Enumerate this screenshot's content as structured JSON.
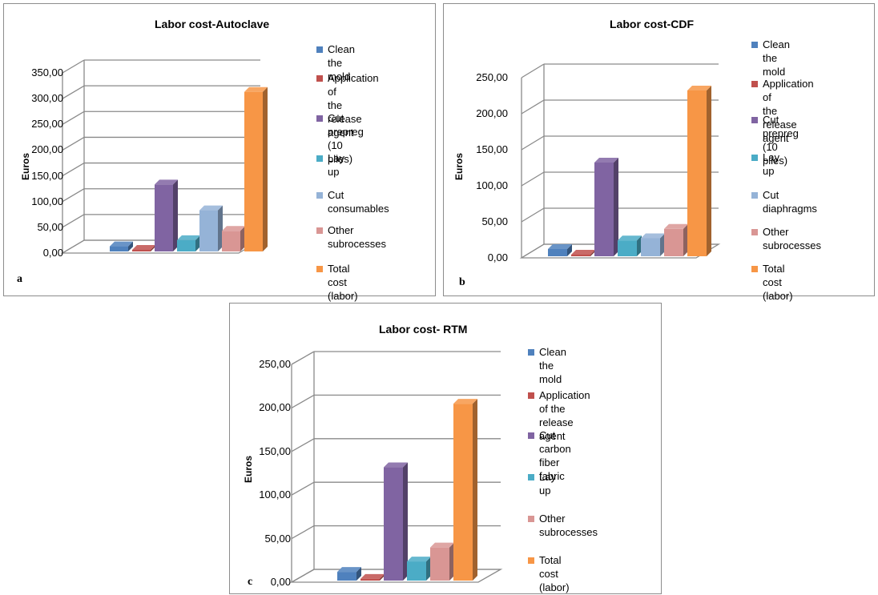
{
  "chart_data": [
    {
      "id": "a",
      "panel_label": "a",
      "type": "bar",
      "title": "Labor cost-Autoclave",
      "ylabel": "Euros",
      "ylim": [
        0,
        350
      ],
      "ticks": [
        "0,00",
        "50,00",
        "100,00",
        "150,00",
        "200,00",
        "250,00",
        "300,00",
        "350,00"
      ],
      "categories": [
        "Clean the mold",
        "Application of the release agent",
        "Cut prepreg (10 plies)",
        "Lay up",
        "Cut consumables",
        "Other subrocesses",
        "Total cost (labor)"
      ],
      "values": [
        10,
        3,
        130,
        22,
        80,
        40,
        310
      ],
      "legend": [
        {
          "lines": [
            "Clean the mold"
          ],
          "color": "#4f81bd"
        },
        {
          "lines": [
            "Application of",
            "the release agent"
          ],
          "color": "#c0504d"
        },
        {
          "lines": [
            "Cut prepreg (10",
            "plies)"
          ],
          "color": "#8064a2"
        },
        {
          "lines": [
            "Lay up"
          ],
          "color": "#4bacc6"
        },
        {
          "lines": [
            "Cut consumables"
          ],
          "color": "#95b3d7"
        },
        {
          "lines": [
            "Other",
            "subrocesses"
          ],
          "color": "#d99694"
        },
        {
          "lines": [
            "Total cost (labor)"
          ],
          "color": "#f79646"
        }
      ],
      "legend_position": "right"
    },
    {
      "id": "b",
      "panel_label": "b",
      "type": "bar",
      "title": "Labor cost-CDF",
      "ylabel": "Euros",
      "ylim": [
        0,
        250
      ],
      "ticks": [
        "0,00",
        "50,00",
        "100,00",
        "150,00",
        "200,00",
        "250,00"
      ],
      "categories": [
        "Clean the mold",
        "Application of the release agent",
        "Cut prepreg (10 plies)",
        "Lay up",
        "Cut diaphragms",
        "Other subrocesses",
        "Total cost (labor)"
      ],
      "values": [
        10,
        2,
        130,
        22,
        25,
        38,
        230
      ],
      "legend": [
        {
          "lines": [
            "Clean the mold"
          ],
          "color": "#4f81bd"
        },
        {
          "lines": [
            "Application of",
            "the release agent"
          ],
          "color": "#c0504d"
        },
        {
          "lines": [
            "Cut prepreg (10",
            "plies)"
          ],
          "color": "#8064a2"
        },
        {
          "lines": [
            "Lay up"
          ],
          "color": "#4bacc6"
        },
        {
          "lines": [
            "Cut diaphragms"
          ],
          "color": "#95b3d7"
        },
        {
          "lines": [
            "Other",
            "subrocesses"
          ],
          "color": "#d99694"
        },
        {
          "lines": [
            "Total cost (labor)"
          ],
          "color": "#f79646"
        }
      ],
      "legend_position": "right"
    },
    {
      "id": "c",
      "panel_label": "c",
      "type": "bar",
      "title": "Labor cost- RTM",
      "ylabel": "Euros",
      "ylim": [
        0,
        250
      ],
      "ticks": [
        "0,00",
        "50,00",
        "100,00",
        "150,00",
        "200,00",
        "250,00"
      ],
      "categories": [
        "Clean the mold",
        "Application of the release agent",
        "Cut carbon fiber fabric",
        "Lay up",
        "Other subrocesses",
        "Total cost (labor)"
      ],
      "values": [
        10,
        2,
        130,
        22,
        38,
        203
      ],
      "legend": [
        {
          "lines": [
            "Clean the mold"
          ],
          "color": "#4f81bd"
        },
        {
          "lines": [
            "Application of the",
            "release agent"
          ],
          "color": "#c0504d"
        },
        {
          "lines": [
            "Cut carbon fiber",
            "fabric"
          ],
          "color": "#8064a2"
        },
        {
          "lines": [
            "Lay up"
          ],
          "color": "#4bacc6"
        },
        {
          "lines": [
            "Other subrocesses"
          ],
          "color": "#d99694"
        },
        {
          "lines": [
            "Total cost (labor)"
          ],
          "color": "#f79646"
        }
      ],
      "legend_position": "right"
    }
  ]
}
